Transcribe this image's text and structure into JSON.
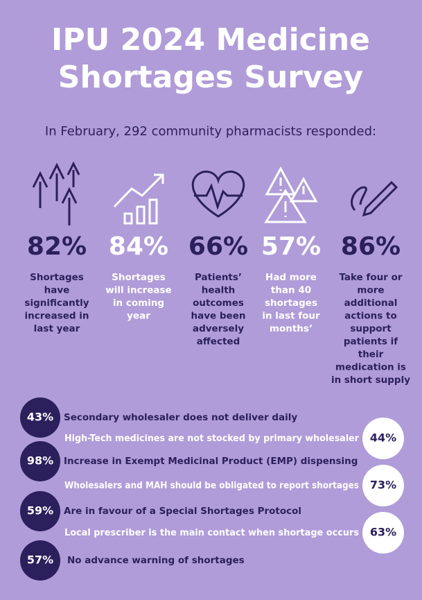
{
  "header": {
    "title_lines": [
      "IPU 2024 Medicine",
      "Shortages Survey"
    ],
    "subtitle": "In February, 292 community pharmacists responded:"
  },
  "stats": [
    {
      "value": "82%",
      "tone": "dark",
      "lines": [
        "Shortages",
        "have",
        "significantly",
        "increased in",
        "last year"
      ]
    },
    {
      "value": "84%",
      "tone": "light",
      "lines": [
        "Shortages",
        "will increase",
        "in coming",
        "year"
      ]
    },
    {
      "value": "66%",
      "tone": "dark",
      "lines": [
        "Patients’",
        "health",
        "outcomes",
        "have been",
        "adversely",
        "affected"
      ]
    },
    {
      "value": "57%",
      "tone": "light",
      "lines": [
        "Had more",
        "than 40",
        "shortages",
        "in last four",
        "months’"
      ]
    },
    {
      "value": "86%",
      "tone": "dark",
      "lines": [
        "Take four or",
        "more",
        "additional",
        "actions to",
        "support",
        "patients if",
        "their",
        "medication is",
        "in short supply"
      ]
    }
  ],
  "findings": [
    {
      "value": "43%",
      "side": "left",
      "text": "Secondary wholesaler does not deliver daily"
    },
    {
      "value": "44%",
      "side": "right",
      "text": "High-Tech medicines are not stocked by primary wholesaler"
    },
    {
      "value": "98%",
      "side": "left",
      "text": "Increase in Exempt Medicinal Product (EMP) dispensing"
    },
    {
      "value": "73%",
      "side": "right",
      "text": "Wholesalers and MAH should be obligated to report shortages"
    },
    {
      "value": "59%",
      "side": "left",
      "text": "Are in favour of a Special Shortages Protocol"
    },
    {
      "value": "63%",
      "side": "right",
      "text": "Local prescriber is the main contact when shortage occurs"
    },
    {
      "value": "57%",
      "side": "left",
      "text": "No advance warning of shortages"
    }
  ]
}
